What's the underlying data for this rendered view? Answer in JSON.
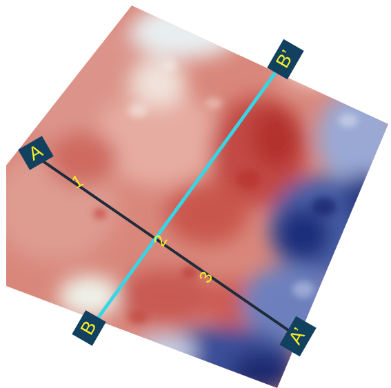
{
  "map": {
    "transects": [
      {
        "start_label": "A",
        "end_label": "A’",
        "line_color": "#1e2b3a",
        "points": [
          "1",
          "2",
          "3"
        ]
      },
      {
        "start_label": "B",
        "end_label": "B’",
        "line_color": "#36d6e6"
      }
    ],
    "colors": {
      "label_box": "#12405f",
      "label_text": "#f5ee2a",
      "point_text": "#f5ee2a",
      "warm": "#c8534a",
      "warm_light": "#e29a8f",
      "pale": "#eaf2e4",
      "cool": "#1c2f7a",
      "cool_light": "#8fa0cc"
    }
  }
}
